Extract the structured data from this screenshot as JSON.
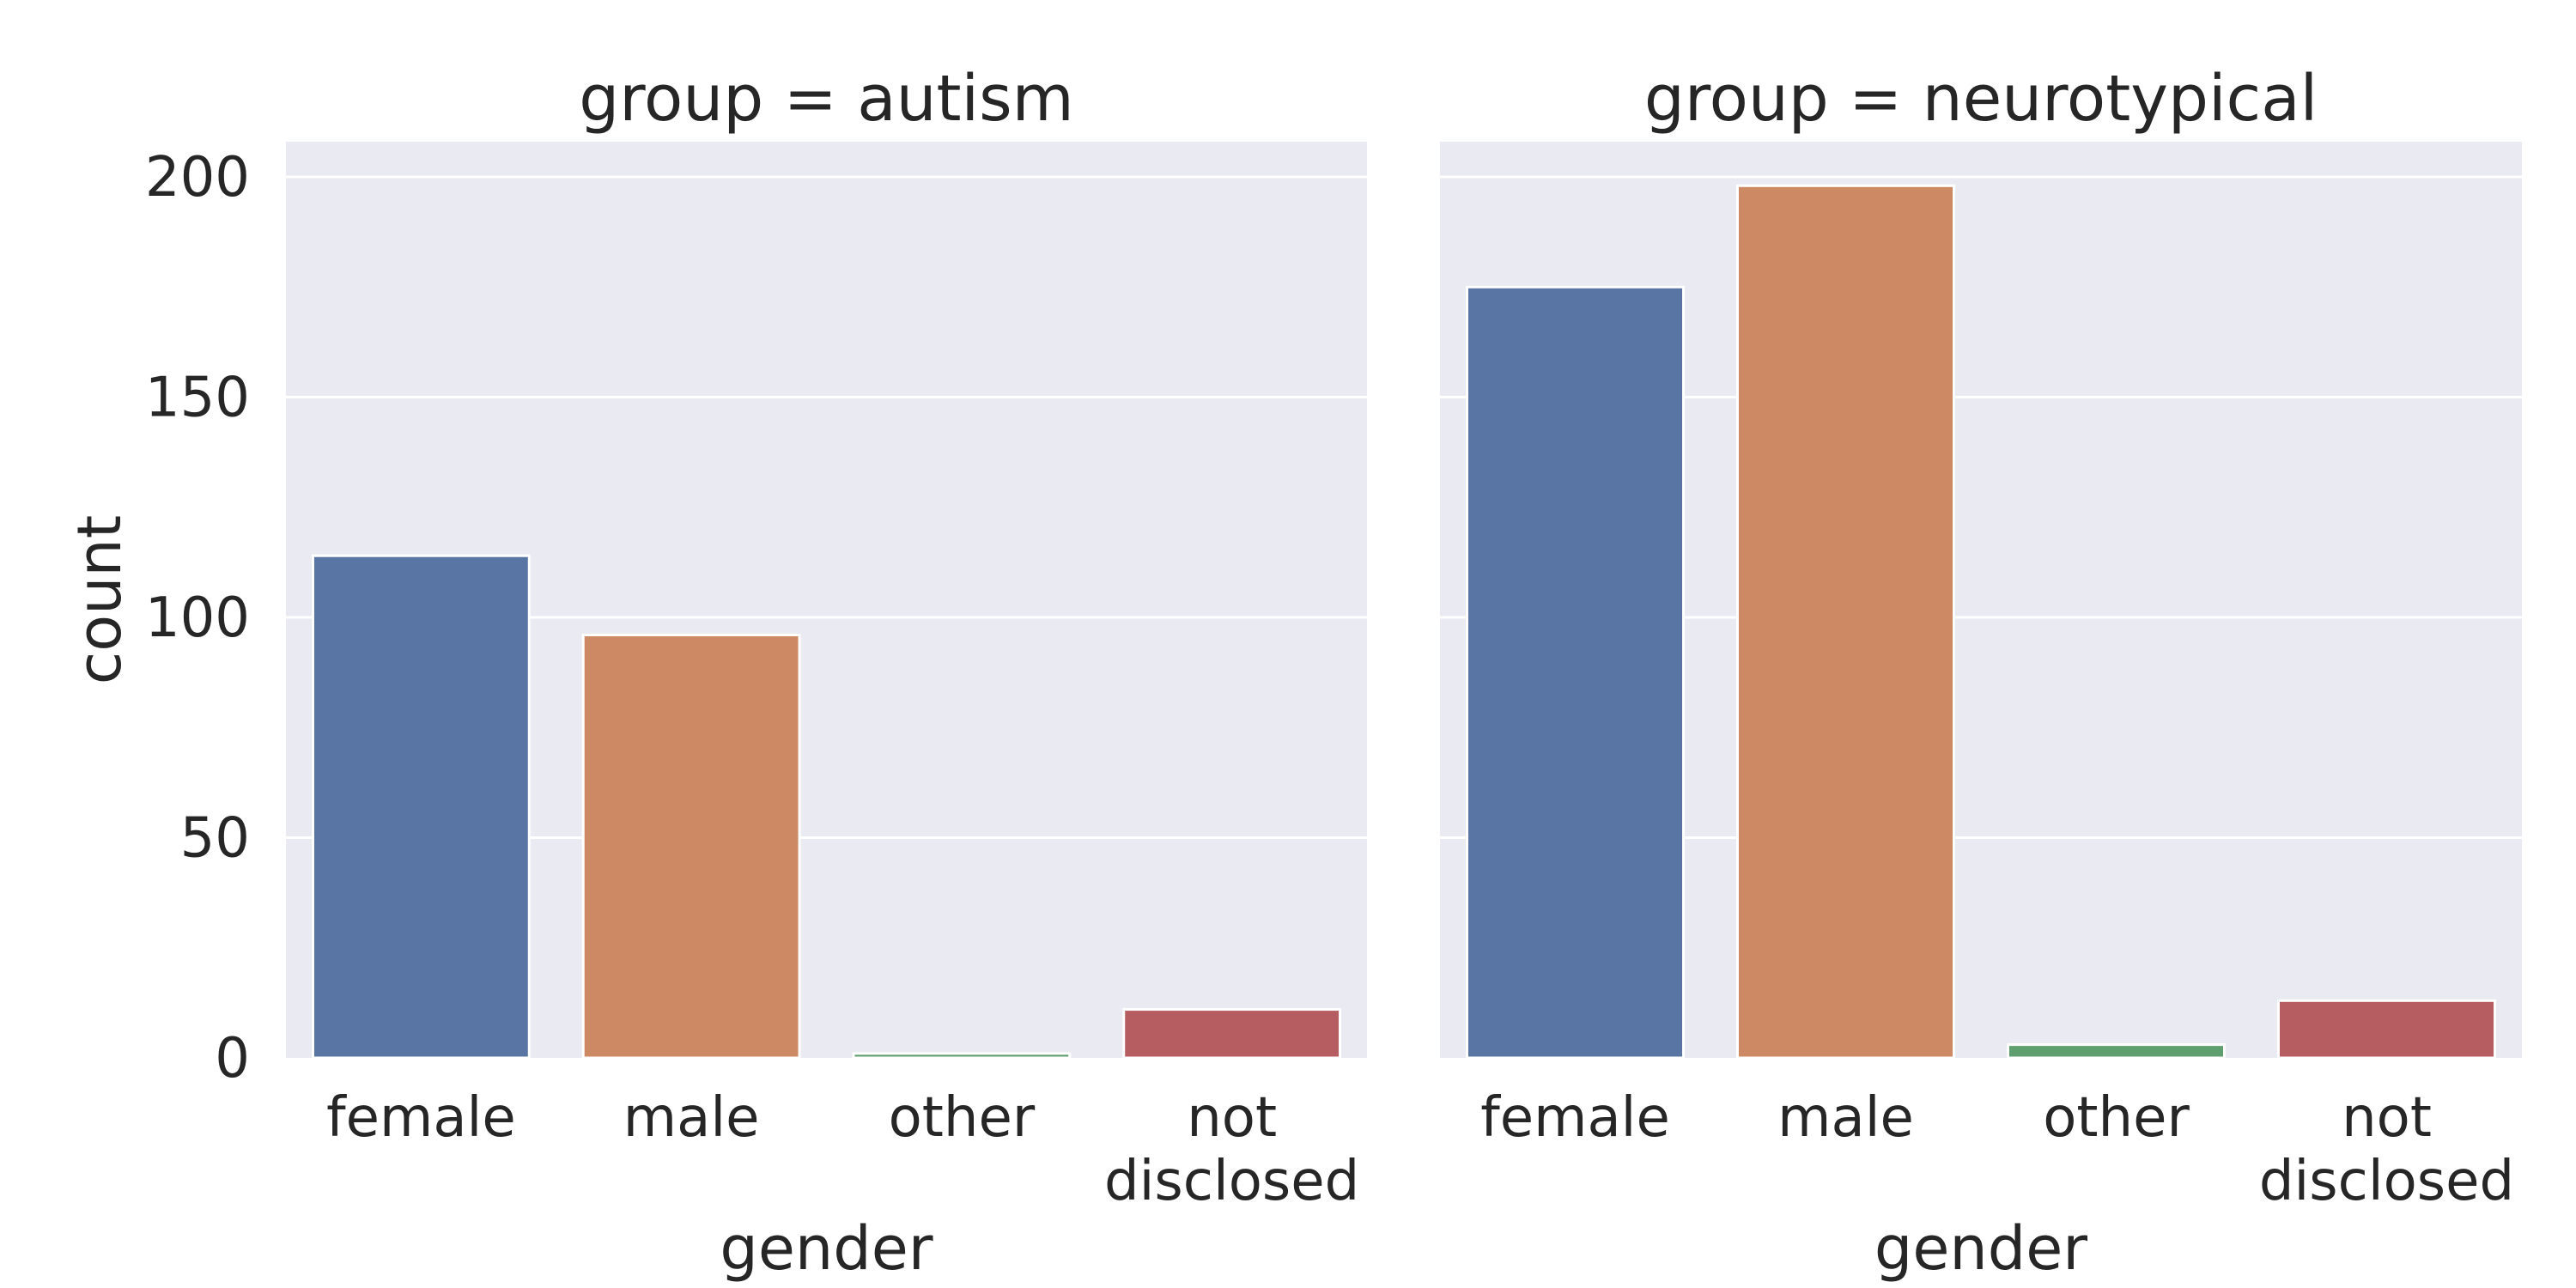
{
  "chart_data": [
    {
      "type": "bar",
      "title": "group = autism",
      "xlabel": "gender",
      "ylabel": "count",
      "categories": [
        "female",
        "male",
        "other",
        "not disclosed"
      ],
      "values": [
        114,
        96,
        1,
        11
      ],
      "ylim": [
        0,
        208
      ],
      "yticks": [
        0,
        50,
        100,
        150,
        200
      ],
      "grid": true
    },
    {
      "type": "bar",
      "title": "group = neurotypical",
      "xlabel": "gender",
      "ylabel": "",
      "categories": [
        "female",
        "male",
        "other",
        "not disclosed"
      ],
      "values": [
        175,
        198,
        3,
        13
      ],
      "ylim": [
        0,
        208
      ],
      "yticks": [
        0,
        50,
        100,
        150,
        200
      ],
      "grid": true
    }
  ],
  "colors": {
    "panel_bg": "#EAEAF2",
    "grid": "#FFFFFF",
    "bars": [
      "#5975A4",
      "#CC8963",
      "#5F9E6E",
      "#B55D60"
    ]
  }
}
